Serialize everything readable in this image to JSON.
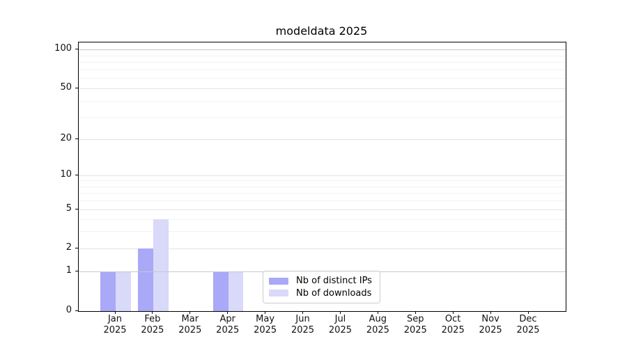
{
  "window": {
    "background": "#ffffff"
  },
  "chart_data": {
    "type": "bar",
    "title": "modeldata 2025",
    "months": [
      "Jan",
      "Feb",
      "Mar",
      "Apr",
      "May",
      "Jun",
      "Jul",
      "Aug",
      "Sep",
      "Oct",
      "Nov",
      "Dec"
    ],
    "year": "2025",
    "series": [
      {
        "name": "Nb of distinct IPs",
        "color": "#a9a9f7",
        "values": [
          1,
          2,
          0,
          1,
          0,
          0,
          0,
          0,
          0,
          0,
          0,
          0
        ]
      },
      {
        "name": "Nb of downloads",
        "color": "#d9d9fa",
        "values": [
          1,
          4,
          0,
          1,
          0,
          0,
          0,
          0,
          0,
          0,
          0,
          0
        ]
      }
    ],
    "yscale": "symlog",
    "yticks": [
      0,
      1,
      2,
      5,
      10,
      20,
      50,
      100
    ],
    "yticks_minor": [
      3,
      4,
      6,
      7,
      8,
      9,
      30,
      40,
      60,
      70,
      80,
      90
    ],
    "ylim": [
      0,
      113
    ],
    "xlabel": "",
    "ylabel": "",
    "grid": "horizontal",
    "legend_position": "lower-center"
  }
}
